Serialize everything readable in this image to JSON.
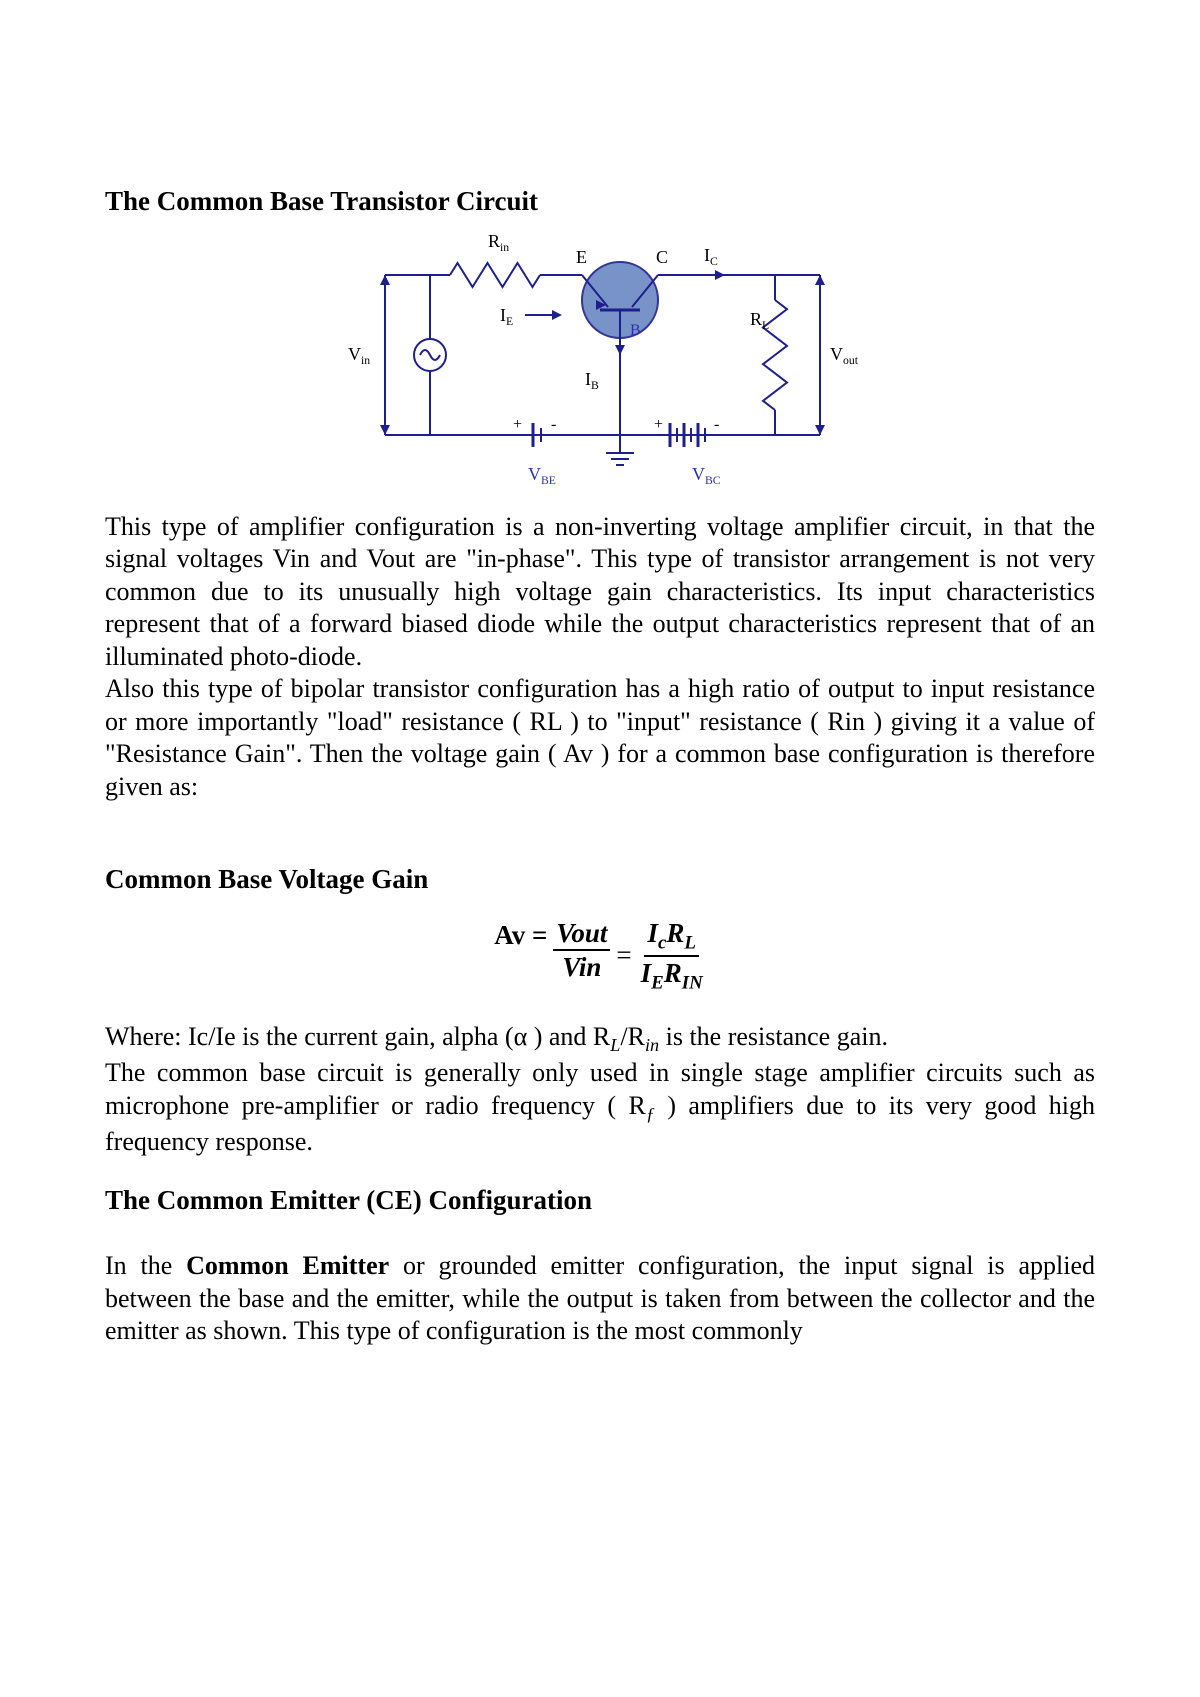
{
  "title1": "The Common Base Transistor Circuit",
  "diagram": {
    "labels": {
      "Rin": "R",
      "Rin_sub": "in",
      "E": "E",
      "C": "C",
      "Ic": "I",
      "Ic_sub": "C",
      "IE": "I",
      "IE_sub": "E",
      "RL": "R",
      "RL_sub": "L",
      "Vin": "V",
      "Vin_sub": "in",
      "Vout": "V",
      "Vout_sub": "out",
      "IB": "I",
      "IB_sub": "B",
      "B": "B",
      "VBE": "V",
      "VBE_sub": "BE",
      "VBC": "V",
      "VBC_sub": "BC",
      "plus": "+",
      "minus": "-"
    },
    "colors": {
      "wire": "#1d1f8c",
      "label_blue": "#2a2fb0",
      "label_black": "#000000",
      "transistor_fill": "#6a88c1",
      "transistor_stroke": "#1d1f8c",
      "bg": "#ffffff"
    }
  },
  "para1": "This type of amplifier configuration is a non-inverting voltage amplifier circuit, in that the signal voltages Vin and Vout are \"in-phase\". This type of transistor arrangement is not very common due to its unusually high voltage gain characteristics. Its input characteristics represent that of a forward biased diode while the output characteristics represent that of an illuminated photo-diode.",
  "para2": "Also this type of bipolar transistor configuration has a high ratio of output to input resistance or more importantly \"load\" resistance ( RL ) to \"input\" resistance ( Rin ) giving it a value of \"Resistance Gain\". Then the voltage gain ( Av ) for a common base configuration is therefore given as:",
  "title2": "Common Base Voltage Gain",
  "formula": {
    "av_label": "Av =",
    "frac1_num": "Vout",
    "frac1_den": "Vin",
    "eq": "=",
    "f2_num_a": "I",
    "f2_num_a_sub": "c",
    "f2_num_b": "R",
    "f2_num_b_sub": "L",
    "f2_den_a": "I",
    "f2_den_a_sub": "E",
    "f2_den_b": "R",
    "f2_den_b_sub": "IN"
  },
  "para3_a": "Where: Ic/Ie is the current gain, alpha (α ) and R",
  "para3_b": "/R",
  "para3_c": " is the resistance gain.",
  "para3_sub1": "L",
  "para3_sub2": "in",
  "para4_a": "The common base circuit is generally only used in single stage amplifier circuits such as microphone pre-amplifier or radio frequency ( R",
  "para4_b": " ) amplifiers due to its very good high frequency response.",
  "para4_sub": "ƒ",
  "title3": "The Common Emitter (CE) Configuration",
  "para5_a": "In the ",
  "para5_bold": "Common Emitter",
  "para5_b": " or grounded emitter configuration, the input signal is applied between the base and the emitter, while the output is taken from between the collector and the emitter as shown. This type of configuration is the most commonly"
}
